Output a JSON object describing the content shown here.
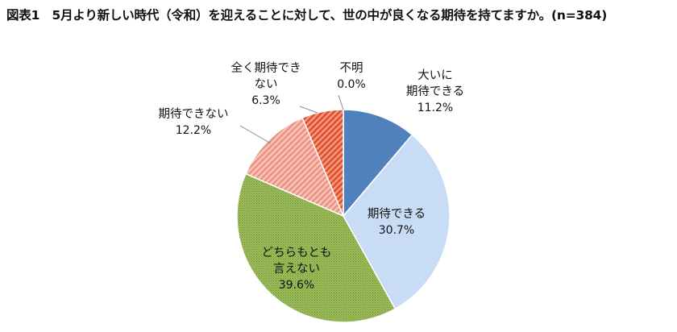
{
  "chart_data": {
    "type": "pie",
    "title": "図表1　5月より新しい時代（令和）を迎えることに対して、世の中が良くなる期待を持てますか。(n=384)",
    "unit": "%",
    "start_angle": "12 o'clock",
    "direction": "clockwise",
    "slices": [
      {
        "label_lines": [
          "大いに",
          "期待できる"
        ],
        "value": 11.2,
        "value_label": "11.2%",
        "color": "#4f81bd",
        "pattern": "solid",
        "label_position": "outside"
      },
      {
        "label_lines": [
          "期待できる"
        ],
        "value": 30.7,
        "value_label": "30.7%",
        "color": "#c9dcf6",
        "pattern": "solid",
        "label_position": "inside"
      },
      {
        "label_lines": [
          "どちらもとも",
          "言えない"
        ],
        "value": 39.6,
        "value_label": "39.6%",
        "color": "#9bbb59",
        "pattern": "dotted",
        "label_position": "inside"
      },
      {
        "label_lines": [
          "期待できない"
        ],
        "value": 12.2,
        "value_label": "12.2%",
        "color": "#f3a79a",
        "pattern": "diagonal-stripes",
        "label_position": "outside"
      },
      {
        "label_lines": [
          "全く期待でき",
          "ない"
        ],
        "value": 6.3,
        "value_label": "6.3%",
        "color": "#e8704f",
        "pattern": "diagonal-stripes",
        "label_position": "outside"
      },
      {
        "label_lines": [
          "不明"
        ],
        "value": 0.0,
        "value_label": "0.0%",
        "color": "#ffffff",
        "pattern": "solid",
        "label_position": "outside"
      }
    ]
  }
}
